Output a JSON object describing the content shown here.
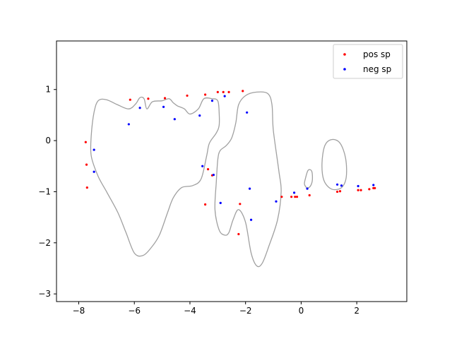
{
  "chart_data": {
    "type": "scatter",
    "title": "",
    "xlabel": "",
    "ylabel": "",
    "xlim": [
      -8.8,
      3.8
    ],
    "ylim": [
      -3.15,
      1.95
    ],
    "xticks": [
      -8,
      -6,
      -4,
      -2,
      0,
      2
    ],
    "yticks": [
      -3,
      -2,
      -1,
      0,
      1
    ],
    "xtick_labels": [
      "−8",
      "−6",
      "−4",
      "−2",
      "0",
      "2"
    ],
    "ytick_labels": [
      "−3",
      "−2",
      "−1",
      "0",
      "1"
    ],
    "grid": false,
    "legend_position": "top-right",
    "series": [
      {
        "name": "pos sp",
        "color": "#ff0000",
        "points": [
          [
            -7.75,
            -0.03
          ],
          [
            -7.72,
            -0.47
          ],
          [
            -7.7,
            -0.92
          ],
          [
            -6.15,
            0.8
          ],
          [
            -5.5,
            0.82
          ],
          [
            -4.9,
            0.83
          ],
          [
            -4.1,
            0.88
          ],
          [
            -3.45,
            0.9
          ],
          [
            -3.0,
            0.95
          ],
          [
            -2.8,
            0.95
          ],
          [
            -2.6,
            0.95
          ],
          [
            -2.1,
            0.97
          ],
          [
            -3.35,
            -0.56
          ],
          [
            -3.2,
            -0.68
          ],
          [
            -3.45,
            -1.25
          ],
          [
            -2.2,
            -1.24
          ],
          [
            -2.25,
            -1.83
          ],
          [
            -0.7,
            -1.1
          ],
          [
            -0.35,
            -1.1
          ],
          [
            -0.22,
            -1.1
          ],
          [
            -0.15,
            -1.1
          ],
          [
            0.3,
            -1.07
          ],
          [
            1.3,
            -1.0
          ],
          [
            1.4,
            -0.99
          ],
          [
            2.05,
            -0.97
          ],
          [
            2.15,
            -0.97
          ],
          [
            2.45,
            -0.95
          ],
          [
            2.6,
            -0.93
          ],
          [
            2.65,
            -0.93
          ]
        ]
      },
      {
        "name": "neg sp",
        "color": "#0000ff",
        "points": [
          [
            -7.45,
            -0.18
          ],
          [
            -7.45,
            -0.61
          ],
          [
            -6.2,
            0.32
          ],
          [
            -5.8,
            0.64
          ],
          [
            -4.95,
            0.66
          ],
          [
            -4.55,
            0.42
          ],
          [
            -3.65,
            0.49
          ],
          [
            -3.2,
            0.78
          ],
          [
            -2.75,
            0.87
          ],
          [
            -1.95,
            0.55
          ],
          [
            -3.55,
            -0.5
          ],
          [
            -3.15,
            -0.67
          ],
          [
            -2.9,
            -1.22
          ],
          [
            -1.85,
            -0.94
          ],
          [
            -1.8,
            -1.55
          ],
          [
            -0.9,
            -1.19
          ],
          [
            -0.25,
            -1.02
          ],
          [
            0.22,
            -0.94
          ],
          [
            1.3,
            -0.86
          ],
          [
            1.45,
            -0.88
          ],
          [
            2.05,
            -0.89
          ],
          [
            2.6,
            -0.87
          ]
        ]
      }
    ],
    "boundary": {
      "color": "#a0a0a0",
      "curves": [
        [
          [
            -7.55,
            0.1
          ],
          [
            -7.45,
            0.55
          ],
          [
            -7.3,
            0.78
          ],
          [
            -7.0,
            0.8
          ],
          [
            -6.6,
            0.7
          ],
          [
            -6.2,
            0.62
          ],
          [
            -5.95,
            0.72
          ],
          [
            -5.8,
            0.84
          ],
          [
            -5.65,
            0.82
          ],
          [
            -5.55,
            0.62
          ],
          [
            -5.35,
            0.76
          ],
          [
            -5.0,
            0.78
          ],
          [
            -4.75,
            0.82
          ],
          [
            -4.6,
            0.74
          ],
          [
            -4.45,
            0.68
          ],
          [
            -4.2,
            0.62
          ],
          [
            -4.0,
            0.52
          ],
          [
            -3.7,
            0.62
          ],
          [
            -3.5,
            0.82
          ],
          [
            -3.2,
            0.82
          ],
          [
            -3.0,
            0.78
          ],
          [
            -2.95,
            0.55
          ],
          [
            -2.95,
            0.3
          ],
          [
            -3.05,
            0.15
          ],
          [
            -3.3,
            -0.05
          ],
          [
            -3.4,
            -0.3
          ],
          [
            -3.6,
            -0.75
          ],
          [
            -3.9,
            -0.88
          ],
          [
            -4.3,
            -0.92
          ],
          [
            -4.6,
            -1.12
          ],
          [
            -4.8,
            -1.4
          ],
          [
            -5.1,
            -1.85
          ],
          [
            -5.4,
            -2.1
          ],
          [
            -5.7,
            -2.25
          ],
          [
            -6.0,
            -2.2
          ],
          [
            -6.3,
            -1.8
          ],
          [
            -6.6,
            -1.4
          ],
          [
            -7.0,
            -1.0
          ],
          [
            -7.3,
            -0.7
          ],
          [
            -7.55,
            -0.3
          ],
          [
            -7.55,
            0.1
          ]
        ],
        [
          [
            -3.05,
            -0.8
          ],
          [
            -3.0,
            -0.38
          ],
          [
            -2.92,
            -0.2
          ],
          [
            -2.7,
            -0.1
          ],
          [
            -2.5,
            0.05
          ],
          [
            -2.35,
            0.35
          ],
          [
            -2.25,
            0.7
          ],
          [
            -2.0,
            0.88
          ],
          [
            -1.6,
            0.95
          ],
          [
            -1.2,
            0.92
          ],
          [
            -1.05,
            0.7
          ],
          [
            -1.0,
            0.2
          ],
          [
            -0.8,
            -0.6
          ],
          [
            -0.72,
            -1.0
          ],
          [
            -0.85,
            -1.55
          ],
          [
            -1.15,
            -2.05
          ],
          [
            -1.4,
            -2.4
          ],
          [
            -1.6,
            -2.45
          ],
          [
            -1.8,
            -2.2
          ],
          [
            -2.0,
            -1.6
          ],
          [
            -2.25,
            -1.35
          ],
          [
            -2.45,
            -1.55
          ],
          [
            -2.6,
            -1.8
          ],
          [
            -2.75,
            -1.85
          ],
          [
            -2.95,
            -1.75
          ],
          [
            -3.1,
            -1.35
          ],
          [
            -3.05,
            -0.8
          ]
        ],
        [
          [
            0.15,
            -0.75
          ],
          [
            0.25,
            -0.58
          ],
          [
            0.38,
            -0.6
          ],
          [
            0.4,
            -0.78
          ],
          [
            0.32,
            -0.9
          ],
          [
            0.2,
            -0.92
          ],
          [
            0.12,
            -0.85
          ],
          [
            0.15,
            -0.75
          ]
        ],
        [
          [
            0.75,
            -0.45
          ],
          [
            0.85,
            -0.1
          ],
          [
            1.1,
            0.02
          ],
          [
            1.4,
            -0.05
          ],
          [
            1.6,
            -0.35
          ],
          [
            1.62,
            -0.72
          ],
          [
            1.45,
            -0.92
          ],
          [
            1.1,
            -0.95
          ],
          [
            0.82,
            -0.78
          ],
          [
            0.75,
            -0.45
          ]
        ]
      ]
    }
  }
}
